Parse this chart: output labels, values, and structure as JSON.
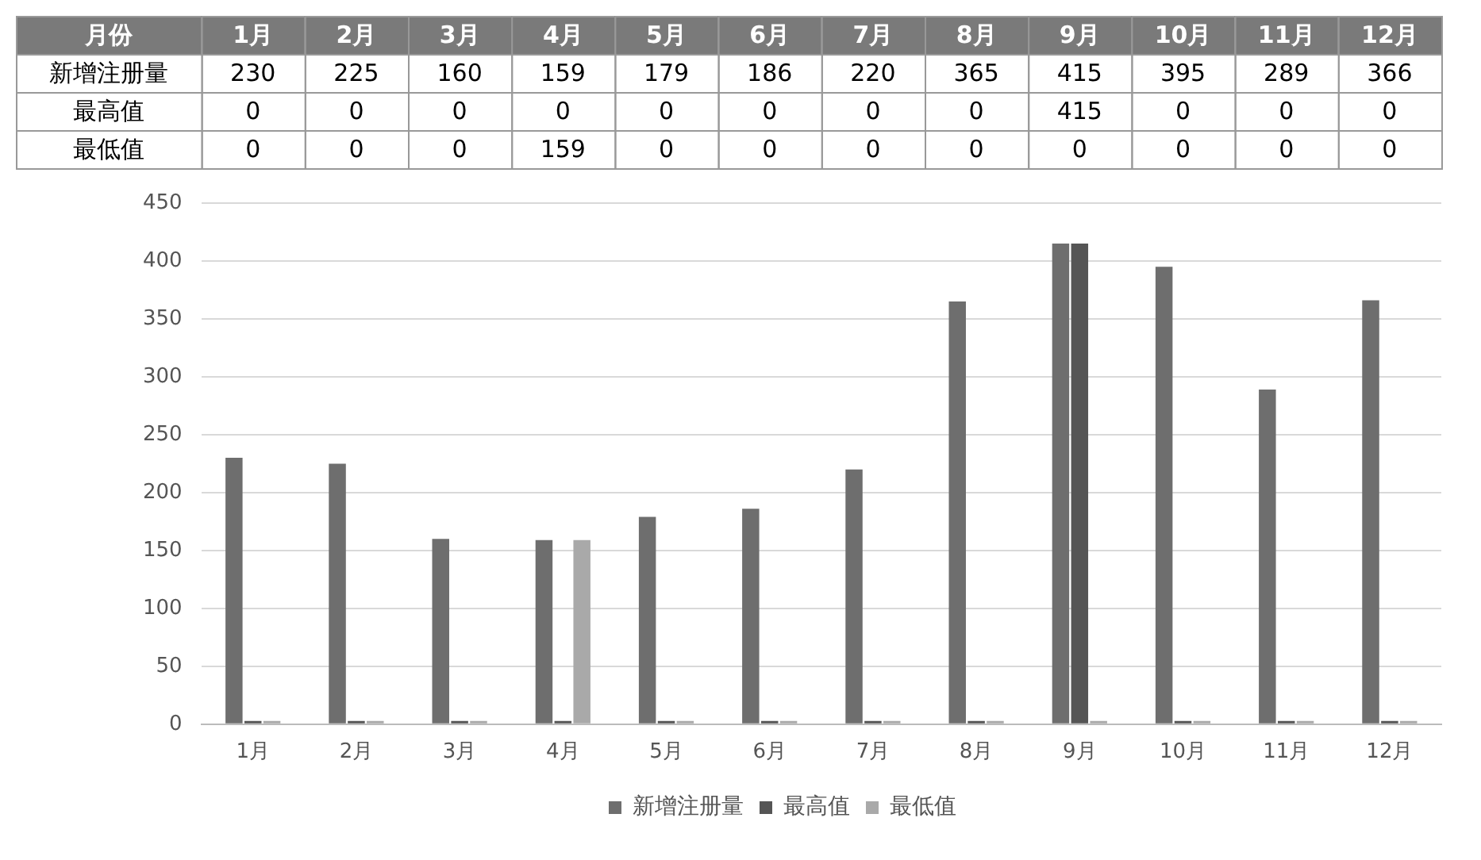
{
  "chart_data": {
    "type": "bar",
    "annotations": [
      "月份"
    ],
    "categories": [
      "1月",
      "2月",
      "3月",
      "4月",
      "5月",
      "6月",
      "7月",
      "8月",
      "9月",
      "10月",
      "11月",
      "12月"
    ],
    "series": [
      {
        "name": "新增注册量",
        "color": "#6e6e6e",
        "values": [
          230,
          225,
          160,
          159,
          179,
          186,
          220,
          365,
          415,
          395,
          289,
          366
        ]
      },
      {
        "name": "最高值",
        "color": "#555555",
        "values": [
          0,
          0,
          0,
          0,
          0,
          0,
          0,
          0,
          415,
          0,
          0,
          0
        ]
      },
      {
        "name": "最低值",
        "color": "#a9a9a9",
        "values": [
          0,
          0,
          0,
          159,
          0,
          0,
          0,
          0,
          0,
          0,
          0,
          0
        ]
      }
    ],
    "ylim": [
      0,
      450
    ],
    "yticks": [
      0,
      50,
      100,
      150,
      200,
      250,
      300,
      350,
      400,
      450
    ],
    "grid": "y",
    "legend": "bottom",
    "data_labels": true
  }
}
